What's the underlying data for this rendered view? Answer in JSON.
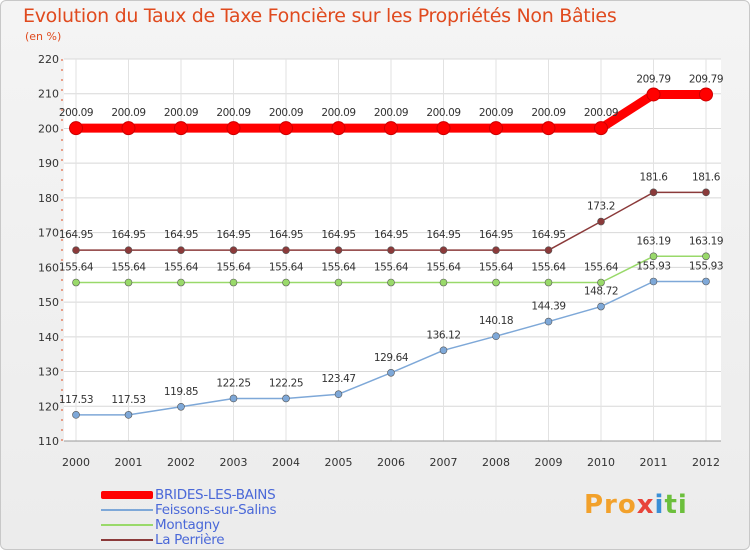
{
  "chart_data": {
    "type": "line",
    "title": "Evolution du Taux de Taxe Foncière sur les Propriétés Non Bâties",
    "subtitle": "(en %)",
    "categories": [
      "2000",
      "2001",
      "2002",
      "2003",
      "2004",
      "2005",
      "2006",
      "2007",
      "2008",
      "2009",
      "2010",
      "2011",
      "2012"
    ],
    "yticks": [
      110,
      120,
      130,
      140,
      150,
      160,
      170,
      180,
      190,
      200,
      210,
      220
    ],
    "ylim": [
      110,
      220
    ],
    "grid": true,
    "series": [
      {
        "name": "BRIDES-LES-BAINS",
        "color": "#ff0000",
        "values": [
          200.09,
          200.09,
          200.09,
          200.09,
          200.09,
          200.09,
          200.09,
          200.09,
          200.09,
          200.09,
          200.09,
          209.79,
          209.79
        ],
        "labels": [
          "200.09",
          "200.09",
          "200.09",
          "200.09",
          "200.09",
          "200.09",
          "200.09",
          "200.09",
          "200.09",
          "200.09",
          "200.09",
          "209.79",
          "209.79"
        ]
      },
      {
        "name": "Feissons-sur-Salins",
        "color": "#7ea8d8",
        "values": [
          117.53,
          117.53,
          119.85,
          122.25,
          122.25,
          123.47,
          129.64,
          136.12,
          140.18,
          144.39,
          148.72,
          155.93,
          155.93
        ],
        "labels": [
          "117.53",
          "117.53",
          "119.85",
          "122.25",
          "122.25",
          "123.47",
          "129.64",
          "136.12",
          "140.18",
          "144.39",
          "148.72",
          "155.93",
          "155.93"
        ]
      },
      {
        "name": "Montagny",
        "color": "#99d96a",
        "values": [
          155.64,
          155.64,
          155.64,
          155.64,
          155.64,
          155.64,
          155.64,
          155.64,
          155.64,
          155.64,
          155.64,
          163.19,
          163.19
        ],
        "labels": [
          "155.64",
          "155.64",
          "155.64",
          "155.64",
          "155.64",
          "155.64",
          "155.64",
          "155.64",
          "155.64",
          "155.64",
          "155.64",
          "163.19",
          "163.19"
        ]
      },
      {
        "name": "La Perrière",
        "color": "#8b3a3a",
        "values": [
          164.95,
          164.95,
          164.95,
          164.95,
          164.95,
          164.95,
          164.95,
          164.95,
          164.95,
          164.95,
          173.2,
          181.6,
          181.6
        ],
        "labels": [
          "164.95",
          "164.95",
          "164.95",
          "164.95",
          "164.95",
          "164.95",
          "164.95",
          "164.95",
          "164.95",
          "164.95",
          "173.2",
          "181.6",
          "181.6"
        ]
      }
    ]
  },
  "logo": {
    "p1": "Pro",
    "p2": "x",
    "p3": "i",
    "p4": "ti"
  }
}
